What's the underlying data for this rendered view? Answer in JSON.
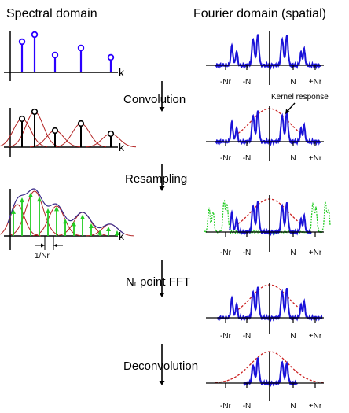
{
  "headers": {
    "left": "Spectral domain",
    "right": "Fourier domain (spatial)"
  },
  "steps": [
    {
      "label": "Convolution"
    },
    {
      "label": "Resampling"
    },
    {
      "label_main": "N",
      "label_sub": "r",
      "label_rest": " point FFT"
    },
    {
      "label": "Deconvolution"
    }
  ],
  "annotations": {
    "kernel_response": "Kernel response",
    "sample_spacing": "1/Nr",
    "k_axis": "k"
  },
  "tick_labels": [
    "-Nr",
    "-N",
    "N",
    "+Nr"
  ],
  "colors": {
    "stem": "#2a00ff",
    "kernel": "#b22222",
    "resample": "#22cc22",
    "signal": "#1a12d8",
    "kernel_dash": "#cc2222",
    "alias": "#22cc22",
    "axis": "#000000"
  }
}
